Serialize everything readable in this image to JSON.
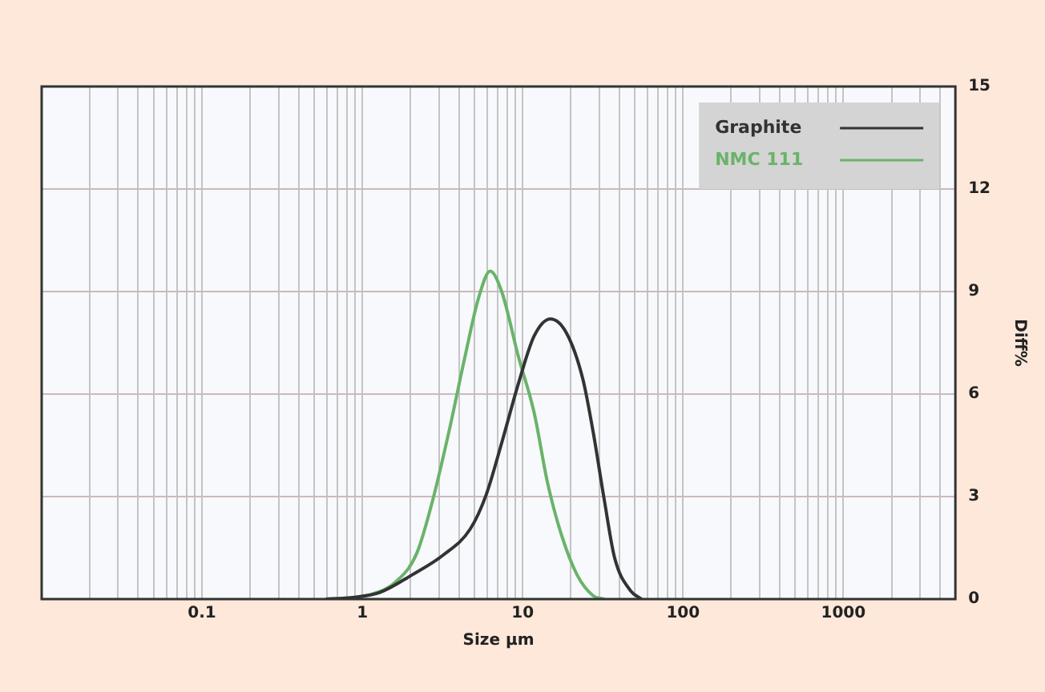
{
  "chart_data": {
    "type": "line",
    "xlabel": "Size µm",
    "ylabel": "Diff%",
    "log": "x",
    "grid": true,
    "legend": "top right",
    "marker": "none",
    "line_style": "solid",
    "xlim": [
      0.01,
      5000
    ],
    "xticks": [
      {
        "value": 0.02,
        "label": null
      },
      {
        "value": 0.03,
        "label": null
      },
      {
        "value": 0.04,
        "label": null
      },
      {
        "value": 0.05,
        "label": null
      },
      {
        "value": 0.06,
        "label": null
      },
      {
        "value": 0.07,
        "label": null
      },
      {
        "value": 0.08,
        "label": null
      },
      {
        "value": 0.09,
        "label": null
      },
      0.1,
      {
        "value": 0.2,
        "label": null
      },
      {
        "value": 0.3,
        "label": null
      },
      {
        "value": 0.4,
        "label": null
      },
      {
        "value": 0.5,
        "label": null
      },
      {
        "value": 0.6,
        "label": null
      },
      {
        "value": 0.7,
        "label": null
      },
      {
        "value": 0.8,
        "label": null
      },
      {
        "value": 0.9,
        "label": null
      },
      1,
      {
        "value": 2,
        "label": null
      },
      {
        "value": 3,
        "label": null
      },
      {
        "value": 4,
        "label": null
      },
      {
        "value": 5,
        "label": null
      },
      {
        "value": 6,
        "label": null
      },
      {
        "value": 7,
        "label": null
      },
      {
        "value": 8,
        "label": null
      },
      {
        "value": 9,
        "label": null
      },
      10,
      {
        "value": 20,
        "label": null
      },
      {
        "value": 30,
        "label": null
      },
      {
        "value": 40,
        "label": null
      },
      {
        "value": 50,
        "label": null
      },
      {
        "value": 60,
        "label": null
      },
      {
        "value": 70,
        "label": null
      },
      {
        "value": 80,
        "label": null
      },
      {
        "value": 90,
        "label": null
      },
      100,
      {
        "value": 200,
        "label": null
      },
      {
        "value": 300,
        "label": null
      },
      {
        "value": 400,
        "label": null
      },
      {
        "value": 500,
        "label": null
      },
      {
        "value": 600,
        "label": null
      },
      {
        "value": 700,
        "label": null
      },
      {
        "value": 800,
        "label": null
      },
      {
        "value": 900,
        "label": null
      },
      1000,
      {
        "value": 2000,
        "label": null
      },
      {
        "value": 3000,
        "label": null
      },
      {
        "value": 4000,
        "label": null
      }
    ],
    "ylim": [
      0,
      15
    ],
    "yticks": [
      0,
      3,
      6,
      9,
      12,
      15
    ],
    "series": [
      {
        "name": "Graphite",
        "color": "#333333",
        "x": [
          0.6,
          0.87,
          1.28,
          2.03,
          3.22,
          4.71,
          5.92,
          7.43,
          9.4,
          11.8,
          14.9,
          18.7,
          23.7,
          27.5,
          32.3,
          37.5,
          47,
          55
        ],
        "values": [
          0,
          0.05,
          0.19,
          0.7,
          1.3,
          2.05,
          3.05,
          4.6,
          6.3,
          7.7,
          8.2,
          7.8,
          6.45,
          4.9,
          2.9,
          1.2,
          0.25,
          0
        ]
      },
      {
        "name": "NMC 111",
        "color": "#6ab36a",
        "x": [
          0.6,
          1.05,
          1.61,
          2.19,
          2.75,
          3.47,
          4.37,
          5.3,
          6.27,
          7.4,
          9.4,
          11.8,
          14.3,
          17.4,
          21.9,
          27.5,
          32
        ],
        "values": [
          0,
          0.1,
          0.5,
          1.35,
          2.9,
          4.9,
          7.1,
          8.8,
          9.6,
          9,
          7.1,
          5.45,
          3.4,
          1.9,
          0.7,
          0.1,
          0
        ]
      }
    ]
  }
}
